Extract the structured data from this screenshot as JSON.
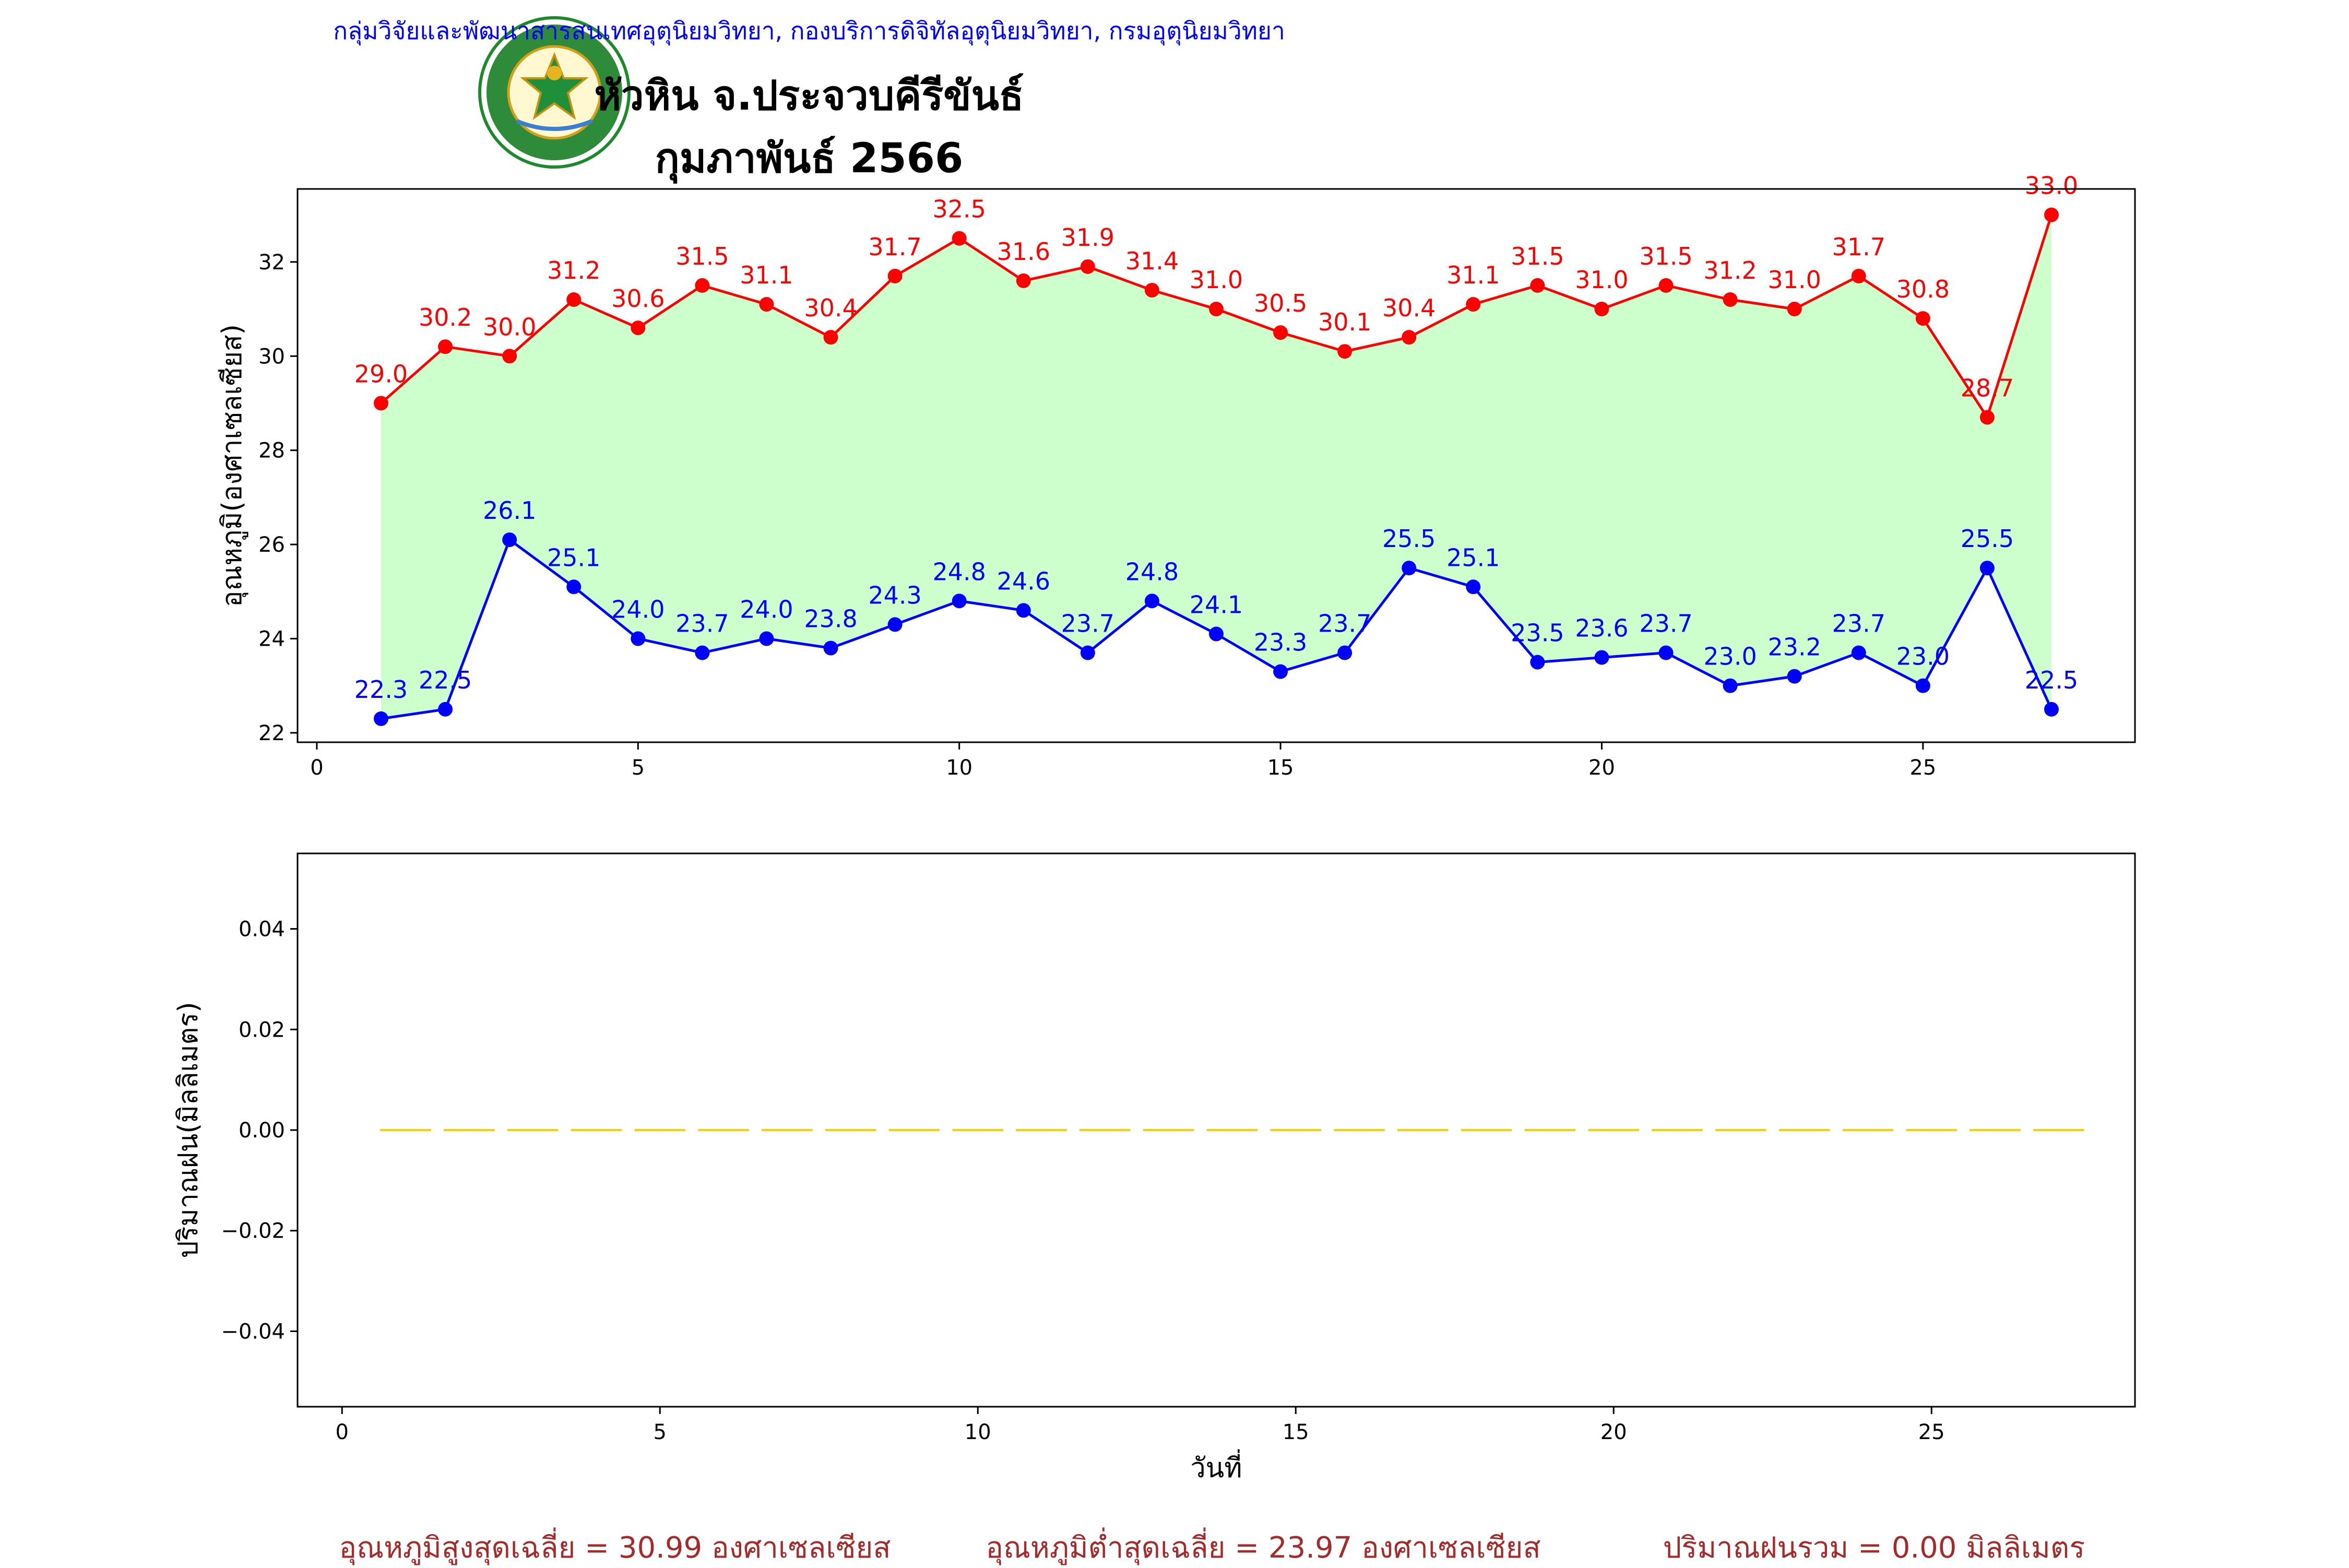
{
  "header": {
    "agency_line": "กลุ่มวิจัยและพัฒนาสารสนเทศอุตุนิยมวิทยา, กองบริการดิจิทัลอุตุนิยมวิทยา, กรมอุตุนิยมวิทยา",
    "station": "หัวหิน จ.ประจวบคีรีขันธ์",
    "period": "กุมภาพันธ์ 2566",
    "logo_top_text": "กรมอุตุนิยมวิทยา",
    "logo_bottom_text": "METEOROLOGICAL DEPARTMENT"
  },
  "colors": {
    "max": "#ff0000",
    "min": "#0000ff",
    "fill": "#ccffcc",
    "rain": "#ffcc00",
    "footer": "#a52a2a",
    "header": "#0000ff"
  },
  "chart_data": [
    {
      "type": "line",
      "ylabel": "อุณหภูมิ(องศาเซลเซียส)",
      "xlabel": "",
      "xlim": [
        -0.3,
        28.3
      ],
      "ylim": [
        21.8,
        33.55
      ],
      "xticks": [
        0,
        5,
        10,
        15,
        20,
        25
      ],
      "yticks": [
        22,
        24,
        26,
        28,
        30,
        32
      ],
      "x": [
        1,
        2,
        3,
        4,
        5,
        6,
        7,
        8,
        9,
        10,
        11,
        12,
        13,
        14,
        15,
        16,
        17,
        18,
        19,
        20,
        21,
        22,
        23,
        24,
        25,
        26,
        27
      ],
      "fill_between": true,
      "series": [
        {
          "key": "max",
          "values": [
            29.0,
            30.2,
            30.0,
            31.2,
            30.6,
            31.5,
            31.1,
            30.4,
            31.7,
            32.5,
            31.6,
            31.9,
            31.4,
            31.0,
            30.5,
            30.1,
            30.4,
            31.1,
            31.5,
            31.0,
            31.5,
            31.2,
            31.0,
            31.7,
            30.8,
            28.7,
            33.0
          ]
        },
        {
          "key": "min",
          "values": [
            22.3,
            22.5,
            26.1,
            25.1,
            24.0,
            23.7,
            24.0,
            23.8,
            24.3,
            24.8,
            24.6,
            23.7,
            24.8,
            24.1,
            23.3,
            23.7,
            25.5,
            25.1,
            23.5,
            23.6,
            23.7,
            23.0,
            23.2,
            23.7,
            23.0,
            25.5,
            22.5
          ]
        }
      ]
    },
    {
      "type": "bar",
      "ylabel": "ปริมาณฝน(มิลลิเมตร)",
      "xlabel": "วันที่",
      "xlim": [
        -0.7,
        28.2
      ],
      "ylim": [
        -0.055,
        0.055
      ],
      "xticks": [
        0,
        5,
        10,
        15,
        20,
        25
      ],
      "yticks": [
        0.04,
        0.02,
        0.0,
        -0.02,
        -0.04
      ],
      "x": [
        1,
        2,
        3,
        4,
        5,
        6,
        7,
        8,
        9,
        10,
        11,
        12,
        13,
        14,
        15,
        16,
        17,
        18,
        19,
        20,
        21,
        22,
        23,
        24,
        25,
        26,
        27
      ],
      "values": [
        0,
        0,
        0,
        0,
        0,
        0,
        0,
        0,
        0,
        0,
        0,
        0,
        0,
        0,
        0,
        0,
        0,
        0,
        0,
        0,
        0,
        0,
        0,
        0,
        0,
        0,
        0
      ]
    }
  ],
  "footer": {
    "avg_max": "อุณหภูมิสูงสุดเฉลี่ย = 30.99 องศาเซลเซียส",
    "avg_min": "อุณหภูมิต่ำสุดเฉลี่ย = 23.97 องศาเซลเซียส",
    "total_rain": "ปริมาณฝนรวม = 0.00 มิลลิเมตร"
  }
}
